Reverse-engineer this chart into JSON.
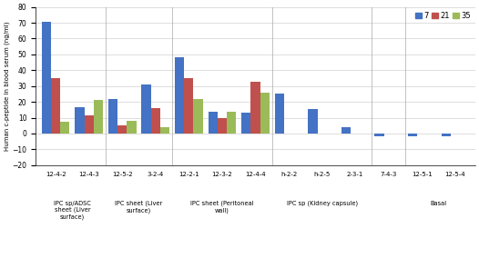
{
  "groups": [
    {
      "label": "12-4-2",
      "day7": 70.5,
      "day21": 35.0,
      "day35": 7.5
    },
    {
      "label": "12-4-3",
      "day7": 16.5,
      "day21": 11.5,
      "day35": 21.0
    },
    {
      "label": "12-5-2",
      "day7": 22.0,
      "day21": 5.0,
      "day35": 8.0
    },
    {
      "label": "3-2-4",
      "day7": 31.0,
      "day21": 16.0,
      "day35": 4.0
    },
    {
      "label": "12-2-1",
      "day7": 48.0,
      "day21": 35.0,
      "day35": 22.0
    },
    {
      "label": "12-3-2",
      "day7": 14.0,
      "day21": 10.0,
      "day35": 14.0
    },
    {
      "label": "12-4-4",
      "day7": 13.0,
      "day21": 32.5,
      "day35": 26.0
    },
    {
      "label": "h-2-2",
      "day7": 25.0,
      "day21": 0,
      "day35": 0
    },
    {
      "label": "h-2-5",
      "day7": 15.5,
      "day21": 0,
      "day35": 0
    },
    {
      "label": "2-3-1",
      "day7": 4.0,
      "day21": 0,
      "day35": 0
    },
    {
      "label": "7-4-3",
      "day7": -1.5,
      "day21": 0,
      "day35": 0
    },
    {
      "label": "12-5-1",
      "day7": -1.5,
      "day21": 0,
      "day35": 0
    },
    {
      "label": "12-5-4",
      "day7": -2.0,
      "day21": 0,
      "day35": 0
    }
  ],
  "group_annotations": [
    {
      "start": 0,
      "end": 1,
      "label": "IPC sp/ADSC\nsheet (Liver\nsurface)"
    },
    {
      "start": 2,
      "end": 3,
      "label": "IPC sheet (Liver\nsurface)"
    },
    {
      "start": 4,
      "end": 6,
      "label": "IPC sheet (Peritoneal\nwall)"
    },
    {
      "start": 7,
      "end": 9,
      "label": "IPC sp (Kidney capsule)"
    },
    {
      "start": 11,
      "end": 12,
      "label": "Basal"
    }
  ],
  "sep_positions": [
    1.5,
    3.5,
    6.5,
    9.5,
    10.5
  ],
  "color_day7": "#4472C4",
  "color_day21": "#C0504D",
  "color_day35": "#9BBB59",
  "ylabel": "Human c-peptide in blood serum (ng/ml)",
  "ylim_min": -20,
  "ylim_max": 80,
  "yticks": [
    -20,
    -10,
    0,
    10,
    20,
    30,
    40,
    50,
    60,
    70,
    80
  ],
  "legend_labels": [
    "7",
    "21",
    "35"
  ],
  "bar_width": 0.28
}
